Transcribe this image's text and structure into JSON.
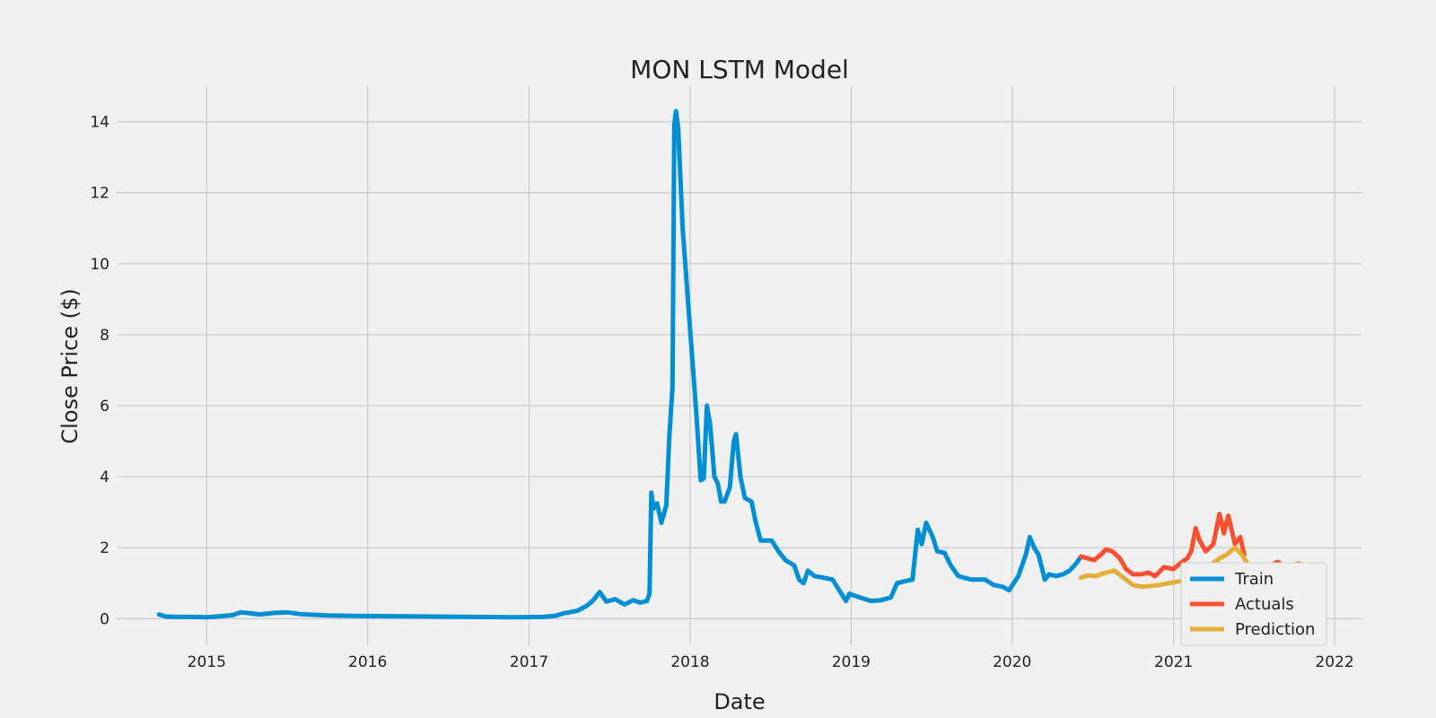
{
  "chart_data": {
    "type": "line",
    "title": "MON LSTM Model",
    "xlabel": "Date",
    "ylabel": "Close Price ($)",
    "xlim": [
      "2014-06-11",
      "2022-03-05"
    ],
    "ylim": [
      -0.75,
      15
    ],
    "x_ticks": [
      "2015",
      "2016",
      "2017",
      "2018",
      "2019",
      "2020",
      "2021",
      "2022"
    ],
    "y_ticks": [
      0,
      2,
      4,
      6,
      8,
      10,
      12,
      14
    ],
    "grid": true,
    "legend_position": "lower-right",
    "colors": {
      "background": "#f0f0f0",
      "grid": "#cbcbcb",
      "text": "#222222"
    },
    "series": [
      {
        "name": "Train",
        "color": "#008fd5",
        "points": [
          [
            "2014-09-15",
            0.12
          ],
          [
            "2014-10-01",
            0.06
          ],
          [
            "2014-11-01",
            0.05
          ],
          [
            "2014-12-01",
            0.05
          ],
          [
            "2015-01-01",
            0.04
          ],
          [
            "2015-02-01",
            0.07
          ],
          [
            "2015-03-01",
            0.1
          ],
          [
            "2015-03-20",
            0.18
          ],
          [
            "2015-04-10",
            0.15
          ],
          [
            "2015-05-01",
            0.12
          ],
          [
            "2015-06-01",
            0.16
          ],
          [
            "2015-07-01",
            0.18
          ],
          [
            "2015-08-01",
            0.13
          ],
          [
            "2015-09-01",
            0.11
          ],
          [
            "2015-10-01",
            0.09
          ],
          [
            "2015-12-01",
            0.08
          ],
          [
            "2016-03-01",
            0.07
          ],
          [
            "2016-06-01",
            0.06
          ],
          [
            "2016-09-01",
            0.05
          ],
          [
            "2016-12-01",
            0.04
          ],
          [
            "2017-02-01",
            0.05
          ],
          [
            "2017-03-01",
            0.08
          ],
          [
            "2017-03-20",
            0.15
          ],
          [
            "2017-04-20",
            0.22
          ],
          [
            "2017-05-10",
            0.35
          ],
          [
            "2017-05-25",
            0.5
          ],
          [
            "2017-06-10",
            0.75
          ],
          [
            "2017-06-25",
            0.48
          ],
          [
            "2017-07-15",
            0.55
          ],
          [
            "2017-08-05",
            0.4
          ],
          [
            "2017-08-25",
            0.52
          ],
          [
            "2017-09-10",
            0.45
          ],
          [
            "2017-09-25",
            0.5
          ],
          [
            "2017-10-01",
            0.7
          ],
          [
            "2017-10-05",
            3.55
          ],
          [
            "2017-10-10",
            3.1
          ],
          [
            "2017-10-18",
            3.25
          ],
          [
            "2017-10-28",
            2.7
          ],
          [
            "2017-11-08",
            3.2
          ],
          [
            "2017-11-15",
            5.2
          ],
          [
            "2017-11-22",
            6.5
          ],
          [
            "2017-11-26",
            13.9
          ],
          [
            "2017-11-30",
            14.3
          ],
          [
            "2017-12-05",
            13.8
          ],
          [
            "2017-12-15",
            11.0
          ],
          [
            "2017-12-28",
            8.8
          ],
          [
            "2018-01-06",
            7.3
          ],
          [
            "2018-01-15",
            5.8
          ],
          [
            "2018-01-25",
            3.9
          ],
          [
            "2018-02-01",
            3.95
          ],
          [
            "2018-02-08",
            6.0
          ],
          [
            "2018-02-15",
            5.5
          ],
          [
            "2018-02-25",
            4.0
          ],
          [
            "2018-03-05",
            3.8
          ],
          [
            "2018-03-12",
            3.3
          ],
          [
            "2018-03-20",
            3.3
          ],
          [
            "2018-04-01",
            3.7
          ],
          [
            "2018-04-10",
            5.0
          ],
          [
            "2018-04-15",
            5.2
          ],
          [
            "2018-04-25",
            4.0
          ],
          [
            "2018-05-05",
            3.4
          ],
          [
            "2018-05-20",
            3.3
          ],
          [
            "2018-05-30",
            2.7
          ],
          [
            "2018-06-10",
            2.2
          ],
          [
            "2018-06-20",
            2.2
          ],
          [
            "2018-07-05",
            2.2
          ],
          [
            "2018-07-20",
            1.9
          ],
          [
            "2018-08-05",
            1.65
          ],
          [
            "2018-08-25",
            1.5
          ],
          [
            "2018-09-05",
            1.1
          ],
          [
            "2018-09-15",
            1.0
          ],
          [
            "2018-09-25",
            1.35
          ],
          [
            "2018-10-10",
            1.2
          ],
          [
            "2018-11-01",
            1.15
          ],
          [
            "2018-11-20",
            1.1
          ],
          [
            "2018-12-05",
            0.8
          ],
          [
            "2018-12-20",
            0.5
          ],
          [
            "2018-12-28",
            0.7
          ],
          [
            "2019-01-20",
            0.6
          ],
          [
            "2019-02-15",
            0.5
          ],
          [
            "2019-03-10",
            0.52
          ],
          [
            "2019-04-01",
            0.6
          ],
          [
            "2019-04-15",
            1.0
          ],
          [
            "2019-05-01",
            1.05
          ],
          [
            "2019-05-20",
            1.1
          ],
          [
            "2019-06-01",
            2.5
          ],
          [
            "2019-06-10",
            2.1
          ],
          [
            "2019-06-20",
            2.7
          ],
          [
            "2019-07-05",
            2.3
          ],
          [
            "2019-07-15",
            1.9
          ],
          [
            "2019-08-01",
            1.85
          ],
          [
            "2019-08-15",
            1.5
          ],
          [
            "2019-09-01",
            1.2
          ],
          [
            "2019-09-15",
            1.15
          ],
          [
            "2019-10-01",
            1.1
          ],
          [
            "2019-11-01",
            1.1
          ],
          [
            "2019-11-20",
            0.95
          ],
          [
            "2019-12-10",
            0.9
          ],
          [
            "2019-12-25",
            0.8
          ],
          [
            "2020-01-15",
            1.2
          ],
          [
            "2020-02-01",
            1.8
          ],
          [
            "2020-02-10",
            2.3
          ],
          [
            "2020-02-20",
            2.0
          ],
          [
            "2020-03-01",
            1.8
          ],
          [
            "2020-03-15",
            1.1
          ],
          [
            "2020-03-25",
            1.25
          ],
          [
            "2020-04-10",
            1.2
          ],
          [
            "2020-04-25",
            1.25
          ],
          [
            "2020-05-10",
            1.35
          ],
          [
            "2020-05-25",
            1.55
          ],
          [
            "2020-06-05",
            1.75
          ]
        ]
      },
      {
        "name": "Actuals",
        "color": "#fc4f30",
        "points": [
          [
            "2020-06-05",
            1.75
          ],
          [
            "2020-06-20",
            1.7
          ],
          [
            "2020-07-05",
            1.65
          ],
          [
            "2020-07-20",
            1.8
          ],
          [
            "2020-08-01",
            1.95
          ],
          [
            "2020-08-15",
            1.9
          ],
          [
            "2020-09-01",
            1.7
          ],
          [
            "2020-09-15",
            1.4
          ],
          [
            "2020-10-01",
            1.25
          ],
          [
            "2020-10-20",
            1.25
          ],
          [
            "2020-11-05",
            1.3
          ],
          [
            "2020-11-20",
            1.2
          ],
          [
            "2020-12-10",
            1.45
          ],
          [
            "2021-01-01",
            1.4
          ],
          [
            "2021-01-15",
            1.55
          ],
          [
            "2021-02-01",
            1.7
          ],
          [
            "2021-02-10",
            1.9
          ],
          [
            "2021-02-20",
            2.55
          ],
          [
            "2021-03-01",
            2.2
          ],
          [
            "2021-03-15",
            1.9
          ],
          [
            "2021-04-01",
            2.1
          ],
          [
            "2021-04-15",
            2.95
          ],
          [
            "2021-04-25",
            2.4
          ],
          [
            "2021-05-05",
            2.9
          ],
          [
            "2021-05-20",
            2.1
          ],
          [
            "2021-06-01",
            2.3
          ],
          [
            "2021-06-10",
            1.8
          ]
        ]
      },
      {
        "name": "Prediction",
        "color": "#e5ae38",
        "points": [
          [
            "2020-06-05",
            1.15
          ],
          [
            "2020-06-20",
            1.22
          ],
          [
            "2020-07-10",
            1.2
          ],
          [
            "2020-08-01",
            1.3
          ],
          [
            "2020-08-20",
            1.35
          ],
          [
            "2020-09-10",
            1.15
          ],
          [
            "2020-10-01",
            0.95
          ],
          [
            "2020-10-20",
            0.9
          ],
          [
            "2020-11-10",
            0.92
          ],
          [
            "2020-12-01",
            0.95
          ],
          [
            "2020-12-20",
            1.0
          ],
          [
            "2021-01-15",
            1.05
          ],
          [
            "2021-02-01",
            1.1
          ],
          [
            "2021-02-20",
            1.3
          ],
          [
            "2021-03-05",
            1.5
          ],
          [
            "2021-03-20",
            1.45
          ],
          [
            "2021-04-15",
            1.7
          ],
          [
            "2021-05-01",
            1.8
          ],
          [
            "2021-05-20",
            2.0
          ],
          [
            "2021-06-05",
            1.8
          ],
          [
            "2021-06-20",
            1.5
          ],
          [
            "2021-07-10",
            1.3
          ],
          [
            "2021-08-01",
            1.1
          ],
          [
            "2021-08-20",
            1.05
          ],
          [
            "2021-09-10",
            1.2
          ],
          [
            "2021-10-01",
            1.3
          ],
          [
            "2021-10-25",
            1.4
          ]
        ]
      }
    ],
    "actuals_tail": [
      [
        "2021-08-10",
        1.5
      ],
      [
        "2021-08-25",
        1.6
      ],
      [
        "2021-09-10",
        1.45
      ],
      [
        "2021-09-25",
        1.5
      ],
      [
        "2021-10-10",
        1.55
      ],
      [
        "2021-10-28",
        1.5
      ]
    ]
  }
}
